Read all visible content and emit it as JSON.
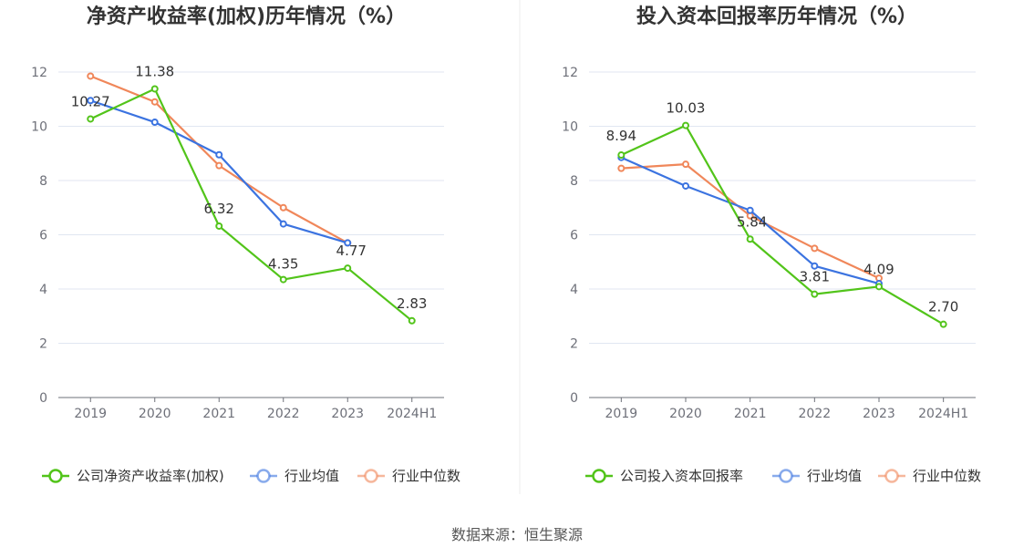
{
  "colors": {
    "company": "#52c41a",
    "industry_avg": "#3b73e0",
    "industry_median": "#f0875a"
  },
  "charts": [
    {
      "chart_data": {
        "type": "line",
        "title": "净资产收益率(加权)历年情况（%）",
        "categories": [
          "2019",
          "2020",
          "2021",
          "2022",
          "2023",
          "2024H1"
        ],
        "ylim": [
          0,
          12
        ],
        "yticks": [
          0,
          2,
          4,
          6,
          8,
          10,
          12
        ],
        "grid": true,
        "legend_position": "bottom",
        "series": [
          {
            "key": "company",
            "name": "公司净资产收益率(加权)",
            "values": [
              10.27,
              11.38,
              6.32,
              4.35,
              4.77,
              2.83
            ],
            "labels": [
              "10.27",
              "11.38",
              "6.32",
              "4.35",
              "4.77",
              "2.83"
            ]
          },
          {
            "key": "industry_avg",
            "name": "行业均值",
            "values": [
              10.95,
              10.15,
              8.95,
              6.4,
              5.7,
              null
            ]
          },
          {
            "key": "industry_median",
            "name": "行业中位数",
            "values": [
              11.85,
              10.9,
              8.55,
              7.0,
              5.7,
              null
            ]
          }
        ]
      }
    },
    {
      "chart_data": {
        "type": "line",
        "title": "投入资本回报率历年情况（%）",
        "categories": [
          "2019",
          "2020",
          "2021",
          "2022",
          "2023",
          "2024H1"
        ],
        "ylim": [
          0,
          12
        ],
        "yticks": [
          0,
          2,
          4,
          6,
          8,
          10,
          12
        ],
        "grid": true,
        "legend_position": "bottom",
        "series": [
          {
            "key": "company",
            "name": "公司投入资本回报率",
            "values": [
              8.94,
              10.03,
              5.84,
              3.81,
              4.09,
              2.7
            ],
            "labels": [
              "8.94",
              "10.03",
              "5.84",
              "3.81",
              "4.09",
              "2.70"
            ]
          },
          {
            "key": "industry_avg",
            "name": "行业均值",
            "values": [
              8.85,
              7.8,
              6.9,
              4.85,
              4.2,
              null
            ]
          },
          {
            "key": "industry_median",
            "name": "行业中位数",
            "values": [
              8.45,
              8.6,
              6.7,
              5.5,
              4.4,
              null
            ]
          }
        ]
      }
    }
  ],
  "footer": {
    "source": "数据来源：恒生聚源"
  }
}
